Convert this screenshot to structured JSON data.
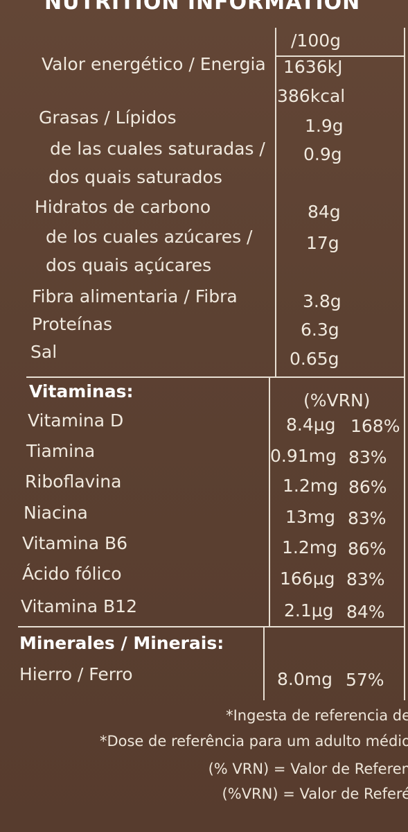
{
  "heading": "NUTRITION INFORMATION",
  "per_column": "/100g",
  "nutrients": [
    {
      "label": "Valor energético / Energia",
      "value": "1636kJ"
    },
    {
      "label": "",
      "value": "386kcal"
    },
    {
      "label": "Grasas / Lípidos",
      "value": "1.9g"
    },
    {
      "label": "de las cuales saturadas /",
      "value": "0.9g"
    },
    {
      "label": "dos quais saturados",
      "value": ""
    },
    {
      "label": "Hidratos de carbono",
      "value": "84g"
    },
    {
      "label": "de los cuales azúcares /",
      "value": "17g"
    },
    {
      "label": "dos quais açúcares",
      "value": ""
    },
    {
      "label": "Fibra alimentaria / Fibra",
      "value": "3.8g"
    },
    {
      "label": "Proteínas",
      "value": "6.3g"
    },
    {
      "label": "Sal",
      "value": "0.65g"
    }
  ],
  "vitamins": {
    "title": "Vitaminas:",
    "column_header": "(%VRN)",
    "items": [
      {
        "label": "Vitamina D",
        "value": "8.4µg",
        "pct": "168%"
      },
      {
        "label": "Tiamina",
        "value": "0.91mg",
        "pct": "83%"
      },
      {
        "label": "Riboflavina",
        "value": "1.2mg",
        "pct": "86%"
      },
      {
        "label": "Niacina",
        "value": "13mg",
        "pct": "83%"
      },
      {
        "label": "Vitamina B6",
        "value": "1.2mg",
        "pct": "86%"
      },
      {
        "label": "Ácido fólico",
        "value": "166µg",
        "pct": "83%"
      },
      {
        "label": "Vitamina B12",
        "value": "2.1µg",
        "pct": "84%"
      }
    ]
  },
  "minerals": {
    "title": "Minerales / Minerais:",
    "items": [
      {
        "label": "Hierro / Ferro",
        "value": "8.0mg",
        "pct": "57%"
      }
    ]
  },
  "footnotes": [
    "*Ingesta de referencia de",
    "*Dose de referência para um adulto médio",
    "(% VRN) = Valor de Referen",
    "(%VRN) = Valor de Referé"
  ]
}
